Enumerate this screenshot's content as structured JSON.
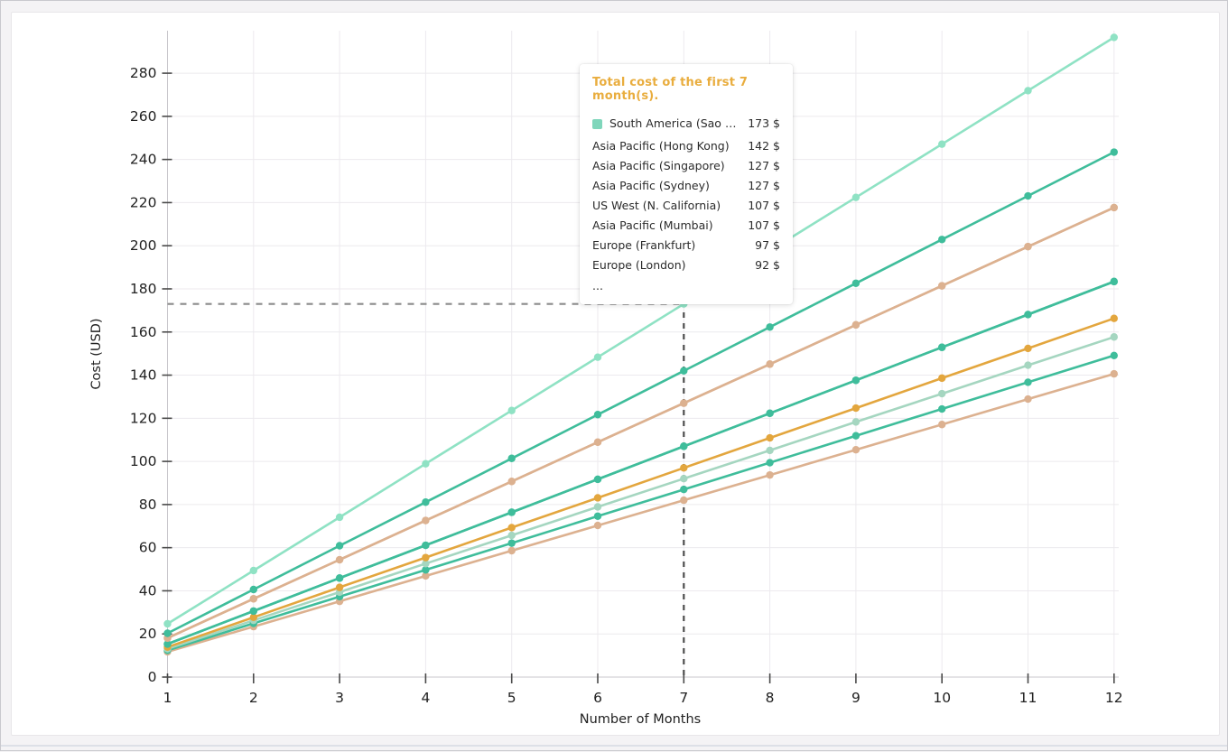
{
  "page": {
    "background": "#f4f3f5",
    "card_background": "#ffffff",
    "grid_color": "#eceaee",
    "axis_color": "#c9c7cc",
    "tick_color": "#4a4a4a",
    "text_color": "#222222"
  },
  "axes": {
    "xlabel": "Number of Months",
    "ylabel": "Cost (USD)"
  },
  "chart_data": {
    "type": "line",
    "title": "",
    "xlabel": "Number of Months",
    "ylabel": "Cost (USD)",
    "x": [
      1,
      2,
      3,
      4,
      5,
      6,
      7,
      8,
      9,
      10,
      11,
      12
    ],
    "x_ticks": [
      1,
      2,
      3,
      4,
      5,
      6,
      7,
      8,
      9,
      10,
      11,
      12
    ],
    "y_ticks": [
      0,
      20,
      40,
      60,
      80,
      100,
      120,
      140,
      160,
      180,
      200,
      220,
      240,
      260,
      280
    ],
    "xlim": [
      1,
      12
    ],
    "ylim": [
      0,
      300
    ],
    "grid": true,
    "legend_position": "tooltip-only",
    "series": [
      {
        "name": "South America (Sao Paulo)",
        "color": "#8fe2c4",
        "total_first_7_months": 173,
        "values": [
          24.7,
          49.4,
          74.1,
          98.9,
          123.6,
          148.3,
          173.0,
          197.7,
          222.4,
          247.1,
          271.9,
          296.6
        ]
      },
      {
        "name": "Asia Pacific (Hong Kong)",
        "color": "#3fbd9b",
        "total_first_7_months": 142,
        "values": [
          20.3,
          40.6,
          60.9,
          81.1,
          101.4,
          121.7,
          142.0,
          162.3,
          182.6,
          202.9,
          223.1,
          243.4
        ]
      },
      {
        "name": "Asia Pacific (Singapore)",
        "color": "#dcb190",
        "total_first_7_months": 127,
        "values": [
          18.1,
          36.3,
          54.4,
          72.6,
          90.7,
          108.9,
          127.0,
          145.1,
          163.3,
          181.4,
          199.6,
          217.7
        ]
      },
      {
        "name": "Asia Pacific (Sydney)",
        "color": "#dcb190",
        "total_first_7_months": 127,
        "values": [
          18.1,
          36.3,
          54.4,
          72.6,
          90.7,
          108.9,
          127.0,
          145.1,
          163.3,
          181.4,
          199.6,
          217.7
        ]
      },
      {
        "name": "US West (N. California)",
        "color": "#3fbd9b",
        "total_first_7_months": 107,
        "values": [
          15.3,
          30.6,
          45.9,
          61.1,
          76.4,
          91.7,
          107.0,
          122.3,
          137.6,
          152.9,
          168.1,
          183.4
        ]
      },
      {
        "name": "Asia Pacific (Mumbai)",
        "color": "#3fbd9b",
        "total_first_7_months": 107,
        "values": [
          15.3,
          30.6,
          45.9,
          61.1,
          76.4,
          91.7,
          107.0,
          122.3,
          137.6,
          152.9,
          168.1,
          183.4
        ]
      },
      {
        "name": "Europe (Frankfurt)",
        "color": "#e3a63e",
        "total_first_7_months": 97,
        "values": [
          13.9,
          27.7,
          41.6,
          55.4,
          69.3,
          83.1,
          97.0,
          110.9,
          124.7,
          138.6,
          152.4,
          166.3
        ]
      },
      {
        "name": "Europe (London)",
        "color": "#a5d6c0",
        "total_first_7_months": 92,
        "values": [
          13.1,
          26.3,
          39.4,
          52.6,
          65.7,
          78.9,
          92.0,
          105.1,
          118.3,
          131.4,
          144.6,
          157.7
        ]
      },
      {
        "name": "",
        "color": "#3fbd9b",
        "total_first_7_months": 87,
        "values": [
          12.4,
          24.9,
          37.3,
          49.7,
          62.1,
          74.6,
          87.0,
          99.4,
          111.9,
          124.3,
          136.7,
          149.1
        ]
      },
      {
        "name": "",
        "color": "#dcb190",
        "total_first_7_months": 82,
        "values": [
          11.7,
          23.4,
          35.1,
          46.9,
          58.6,
          70.3,
          82.0,
          93.7,
          105.4,
          117.1,
          128.9,
          140.6
        ]
      }
    ]
  },
  "crosshair": {
    "month": 7,
    "value": 173,
    "horizontal_color": "#8c8c8c",
    "vertical_color": "#4d4d4d"
  },
  "tooltip": {
    "title": "Total cost of the first 7 month(s).",
    "title_color": "#e9ad3e",
    "marker_color": "#7fd6bb",
    "rows": [
      {
        "label": "South America (Sao Paulo)",
        "value": "173 $",
        "highlighted": true
      },
      {
        "label": "Asia Pacific (Hong Kong)",
        "value": "142 $",
        "highlighted": false
      },
      {
        "label": "Asia Pacific (Singapore)",
        "value": "127 $",
        "highlighted": false
      },
      {
        "label": "Asia Pacific (Sydney)",
        "value": "127 $",
        "highlighted": false
      },
      {
        "label": "US West (N. California)",
        "value": "107 $",
        "highlighted": false
      },
      {
        "label": "Asia Pacific (Mumbai)",
        "value": "107 $",
        "highlighted": false
      },
      {
        "label": "Europe (Frankfurt)",
        "value": "97 $",
        "highlighted": false
      },
      {
        "label": "Europe (London)",
        "value": "92 $",
        "highlighted": false
      }
    ],
    "more_indicator": "..."
  }
}
